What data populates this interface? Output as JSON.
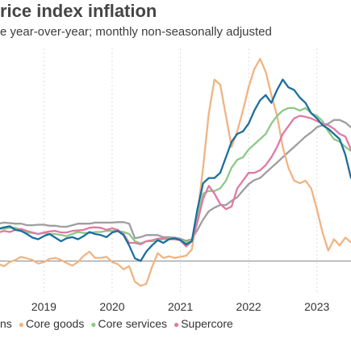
{
  "title": "rice index inflation",
  "subtitle": "e year-over-year; monthly non-seasonally adjusted",
  "chart_data": {
    "type": "line",
    "title": "rice index inflation",
    "subtitle": "e year-over-year; monthly non-seasonally adjusted",
    "xlabel": "",
    "ylabel": "",
    "x": [
      2018.333,
      2018.417,
      2018.5,
      2018.583,
      2018.667,
      2018.75,
      2018.833,
      2018.917,
      2019.0,
      2019.083,
      2019.167,
      2019.25,
      2019.333,
      2019.417,
      2019.5,
      2019.583,
      2019.667,
      2019.75,
      2019.833,
      2019.917,
      2020.0,
      2020.083,
      2020.167,
      2020.25,
      2020.333,
      2020.417,
      2020.5,
      2020.583,
      2020.667,
      2020.75,
      2020.833,
      2020.917,
      2021.0,
      2021.083,
      2021.167,
      2021.25,
      2021.333,
      2021.417,
      2021.5,
      2021.583,
      2021.667,
      2021.75,
      2021.833,
      2021.917,
      2022.0,
      2022.083,
      2022.167,
      2022.25,
      2022.333,
      2022.417,
      2022.5,
      2022.583,
      2022.667,
      2022.75,
      2022.833,
      2022.917,
      2023.0,
      2023.083,
      2023.167,
      2023.25,
      2023.333,
      2023.417,
      2023.5
    ],
    "xlim": [
      2018.333,
      2023.5
    ],
    "ylim": [
      -0.6,
      4.1
    ],
    "x_ticks": [
      "2019",
      "2020",
      "2021",
      "2022",
      "2023"
    ],
    "x_tick_values": [
      2019,
      2020,
      2021,
      2022,
      2023
    ],
    "baseline": 0,
    "grid": true,
    "legend_position": "bottom-left",
    "legend_items": [
      {
        "label": "ns",
        "marker": false
      },
      {
        "label": "Core goods",
        "color": "#f0b482",
        "marker": true
      },
      {
        "label": "Core services",
        "color": "#8cc98a",
        "marker": true
      },
      {
        "label": "Supercore",
        "color": "#df7aa4",
        "marker": true
      }
    ],
    "series": [
      {
        "color": "#9e9e9e",
        "values": [
          0.72,
          0.74,
          0.73,
          0.72,
          0.72,
          0.69,
          0.69,
          0.7,
          0.7,
          0.68,
          0.68,
          0.66,
          0.66,
          0.69,
          0.72,
          0.72,
          0.72,
          0.74,
          0.74,
          0.74,
          0.74,
          0.75,
          0.75,
          0.72,
          0.44,
          0.46,
          0.5,
          0.5,
          0.5,
          0.46,
          0.46,
          0.45,
          0.43,
          0.39,
          0.42,
          0.6,
          0.8,
          0.96,
          1.03,
          1.08,
          1.08,
          1.16,
          1.23,
          1.36,
          1.48,
          1.56,
          1.6,
          1.7,
          1.8,
          1.9,
          2.0,
          2.1,
          2.2,
          2.3,
          2.4,
          2.48,
          2.58,
          2.62,
          2.65,
          2.72,
          2.72,
          2.67,
          2.58
        ]
      },
      {
        "name": "Core goods",
        "color": "#f0b482",
        "values": [
          -0.06,
          -0.1,
          -0.02,
          0.02,
          0.08,
          0.05,
          0.02,
          -0.05,
          -0.02,
          0.04,
          0.06,
          0.02,
          -0.04,
          -0.09,
          -0.02,
          0.1,
          0.18,
          0.06,
          0.06,
          0.08,
          -0.02,
          -0.06,
          -0.16,
          -0.1,
          -0.4,
          -0.48,
          -0.44,
          -0.12,
          0.15,
          0.06,
          0.09,
          0.06,
          0.08,
          0.1,
          0.22,
          0.9,
          1.8,
          2.85,
          3.5,
          3.4,
          2.8,
          2.2,
          2.5,
          2.9,
          3.35,
          3.7,
          3.9,
          3.65,
          3.2,
          2.8,
          2.2,
          1.8,
          1.55,
          1.5,
          1.55,
          1.4,
          1.0,
          0.55,
          0.2,
          0.42,
          0.3,
          0.45,
          0.36
        ]
      },
      {
        "name": "Core services",
        "color": "#8cc98a",
        "values": [
          0.62,
          0.62,
          0.64,
          0.64,
          0.6,
          0.55,
          0.54,
          0.52,
          0.54,
          0.52,
          0.52,
          0.5,
          0.48,
          0.52,
          0.56,
          0.54,
          0.54,
          0.56,
          0.56,
          0.58,
          0.58,
          0.58,
          0.56,
          0.52,
          0.38,
          0.34,
          0.38,
          0.38,
          0.4,
          0.42,
          0.44,
          0.42,
          0.4,
          0.36,
          0.4,
          0.85,
          1.3,
          1.35,
          1.35,
          1.4,
          1.55,
          1.8,
          1.95,
          2.0,
          2.15,
          2.25,
          2.35,
          2.45,
          2.65,
          2.8,
          2.9,
          2.95,
          2.95,
          2.9,
          2.95,
          2.85,
          2.8,
          2.7,
          2.5,
          2.35,
          2.3,
          2.2,
          2.12
        ]
      },
      {
        "name": "Supercore",
        "color": "#df7aa4",
        "values": [
          0.55,
          0.58,
          0.56,
          0.6,
          0.62,
          0.58,
          0.55,
          0.52,
          0.55,
          0.57,
          0.58,
          0.55,
          0.55,
          0.58,
          0.59,
          0.6,
          0.64,
          0.65,
          0.64,
          0.6,
          0.63,
          0.6,
          0.52,
          0.35,
          0.35,
          0.32,
          0.38,
          0.4,
          0.43,
          0.44,
          0.42,
          0.42,
          0.4,
          0.28,
          0.38,
          0.75,
          1.2,
          1.45,
          1.3,
          1.1,
          1.0,
          1.05,
          1.4,
          1.55,
          1.7,
          1.7,
          1.75,
          1.85,
          2.0,
          2.2,
          2.45,
          2.6,
          2.75,
          2.8,
          2.78,
          2.75,
          2.7,
          2.65,
          2.62,
          2.55,
          2.45,
          2.4,
          2.15
        ]
      },
      {
        "color": "#1b6f9e",
        "values": [
          0.62,
          0.65,
          0.67,
          0.6,
          0.58,
          0.52,
          0.45,
          0.42,
          0.48,
          0.52,
          0.45,
          0.38,
          0.44,
          0.46,
          0.42,
          0.48,
          0.56,
          0.52,
          0.5,
          0.46,
          0.55,
          0.58,
          0.5,
          0.3,
          0.05,
          0.0,
          0.18,
          0.3,
          0.4,
          0.35,
          0.42,
          0.44,
          0.4,
          0.32,
          0.38,
          1.0,
          1.5,
          1.6,
          1.6,
          1.7,
          2.0,
          2.3,
          2.45,
          2.5,
          2.65,
          2.9,
          3.1,
          3.2,
          3.05,
          3.3,
          3.5,
          3.35,
          3.3,
          3.15,
          3.05,
          2.85,
          2.75,
          2.62,
          2.55,
          2.45,
          2.35,
          2.05,
          1.6
        ]
      }
    ]
  }
}
